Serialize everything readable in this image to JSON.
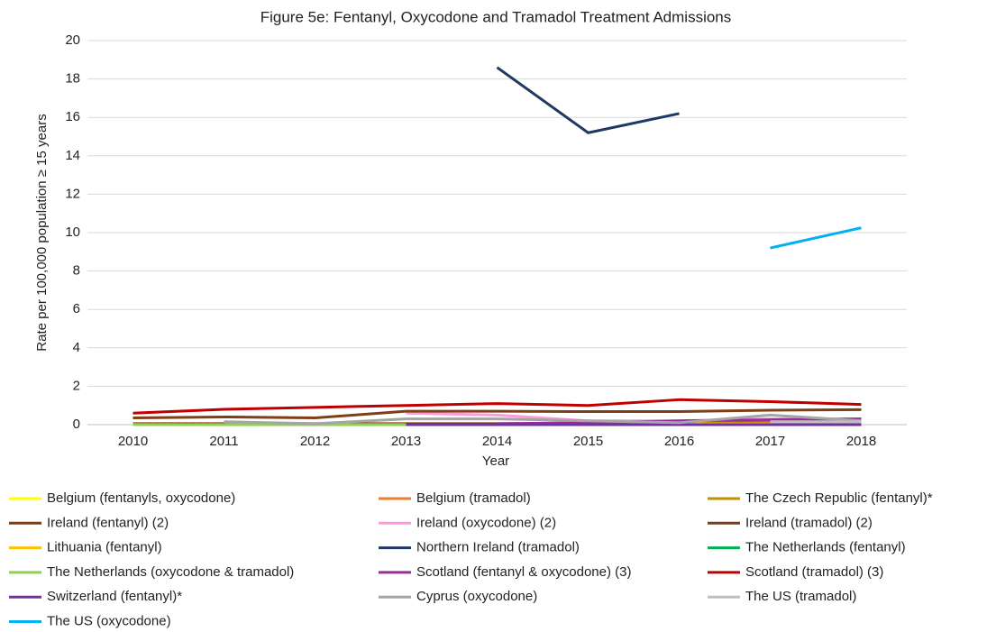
{
  "chart_data": {
    "type": "line",
    "title": "Figure 5e: Fentanyl, Oxycodone and Tramadol Treatment Admissions",
    "x_label": "Year",
    "y_label": "Rate per 100,000 population ≥ 15 years",
    "categories": [
      "2010",
      "2011",
      "2012",
      "2013",
      "2014",
      "2015",
      "2016",
      "2017",
      "2018"
    ],
    "ylim": [
      0,
      20
    ],
    "yticks": [
      0,
      2,
      4,
      6,
      8,
      10,
      12,
      14,
      16,
      18,
      20
    ],
    "grid": true,
    "legend": "bottom",
    "series": [
      {
        "name": "Belgium (fentanyls, oxycodone)",
        "color": "#ffff00",
        "values": [
          null,
          null,
          null,
          null,
          null,
          0.02,
          0.02,
          0.02,
          0.02
        ]
      },
      {
        "name": "Belgium (tramadol)",
        "color": "#ed7d31",
        "values": [
          null,
          null,
          null,
          null,
          null,
          0.1,
          0.1,
          0.1,
          0.1
        ]
      },
      {
        "name": "The Czech Republic (fentanyl)*",
        "color": "#bf9000",
        "values": [
          null,
          null,
          null,
          null,
          null,
          null,
          0.05,
          0.05,
          0.05
        ]
      },
      {
        "name": "Ireland (fentanyl) (2)",
        "color": "#843c0c",
        "values": [
          0.05,
          0.05,
          0.05,
          0.05,
          0.05,
          0.05,
          0.05,
          0.1,
          0.1
        ]
      },
      {
        "name": "Ireland (oxycodone) (2)",
        "color": "#ff99dd",
        "values": [
          null,
          null,
          null,
          0.6,
          0.5,
          0.2,
          0.2,
          0.3,
          0.3
        ]
      },
      {
        "name": "Ireland (tramadol) (2)",
        "color": "#7f3f16",
        "values": [
          0.35,
          0.4,
          0.35,
          0.7,
          0.7,
          0.68,
          0.68,
          0.75,
          0.78
        ]
      },
      {
        "name": "Lithuania (fentanyl)",
        "color": "#ffc000",
        "values": [
          null,
          null,
          null,
          null,
          null,
          0.05,
          0.05,
          0.05,
          0.05
        ]
      },
      {
        "name": "Northern Ireland (tramadol)",
        "color": "#1f3864",
        "values": [
          null,
          null,
          null,
          null,
          18.6,
          15.2,
          16.2,
          null,
          null
        ]
      },
      {
        "name": "The Netherlands (fentanyl)",
        "color": "#00b050",
        "values": [
          0.02,
          0.02,
          0.02,
          0.02,
          null,
          null,
          null,
          null,
          null
        ]
      },
      {
        "name": "The Netherlands (oxycodone & tramadol)",
        "color": "#92d050",
        "values": [
          0,
          0,
          0,
          0,
          null,
          null,
          null,
          null,
          null
        ]
      },
      {
        "name": "Scotland (fentanyl & oxycodone) (3)",
        "color": "#9b2d9b",
        "values": [
          null,
          null,
          null,
          null,
          0.05,
          0.1,
          0.2,
          0.25,
          0.3
        ]
      },
      {
        "name": "Scotland (tramadol) (3)",
        "color": "#c00000",
        "values": [
          0.6,
          0.8,
          0.9,
          1.0,
          1.1,
          1.0,
          1.3,
          1.2,
          1.05
        ]
      },
      {
        "name": "Switzerland (fentanyl)*",
        "color": "#7030a0",
        "values": [
          null,
          null,
          null,
          0,
          0,
          0,
          0,
          0,
          0
        ]
      },
      {
        "name": "Cyprus (oxycodone)",
        "color": "#a5a5a5",
        "values": [
          null,
          0.15,
          0.05,
          0.3,
          0.3,
          0.2,
          0.1,
          0.5,
          0.2
        ]
      },
      {
        "name": "The US (tramadol)",
        "color": "#bfbfbf",
        "values": [
          null,
          null,
          null,
          null,
          null,
          null,
          null,
          0.15,
          0.15
        ]
      },
      {
        "name": "The US (oxycodone)",
        "color": "#00b0f0",
        "values": [
          null,
          null,
          null,
          null,
          null,
          null,
          null,
          9.2,
          10.25
        ]
      }
    ]
  }
}
